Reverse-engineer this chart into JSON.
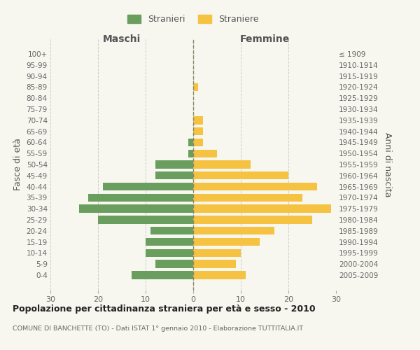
{
  "age_groups": [
    "100+",
    "95-99",
    "90-94",
    "85-89",
    "80-84",
    "75-79",
    "70-74",
    "65-69",
    "60-64",
    "55-59",
    "50-54",
    "45-49",
    "40-44",
    "35-39",
    "30-34",
    "25-29",
    "20-24",
    "15-19",
    "10-14",
    "5-9",
    "0-4"
  ],
  "birth_years": [
    "≤ 1909",
    "1910-1914",
    "1915-1919",
    "1920-1924",
    "1925-1929",
    "1930-1934",
    "1935-1939",
    "1940-1944",
    "1945-1949",
    "1950-1954",
    "1955-1959",
    "1960-1964",
    "1965-1969",
    "1970-1974",
    "1975-1979",
    "1980-1984",
    "1985-1989",
    "1990-1994",
    "1995-1999",
    "2000-2004",
    "2005-2009"
  ],
  "maschi": [
    0,
    0,
    0,
    0,
    0,
    0,
    0,
    0,
    1,
    1,
    8,
    8,
    19,
    22,
    24,
    20,
    9,
    10,
    10,
    8,
    13
  ],
  "femmine": [
    0,
    0,
    0,
    1,
    0,
    0,
    2,
    2,
    2,
    5,
    12,
    20,
    26,
    23,
    29,
    25,
    17,
    14,
    10,
    9,
    11
  ],
  "male_color": "#6a9e5e",
  "female_color": "#f5c242",
  "background_color": "#f7f7f0",
  "grid_color": "#cccccc",
  "title": "Popolazione per cittadinanza straniera per età e sesso - 2010",
  "subtitle": "COMUNE DI BANCHETTE (TO) - Dati ISTAT 1° gennaio 2010 - Elaborazione TUTTITALIA.IT",
  "xlabel_left": "Maschi",
  "xlabel_right": "Femmine",
  "ylabel_left": "Fasce di età",
  "ylabel_right": "Anni di nascita",
  "legend_male": "Stranieri",
  "legend_female": "Straniere",
  "xlim": 30
}
